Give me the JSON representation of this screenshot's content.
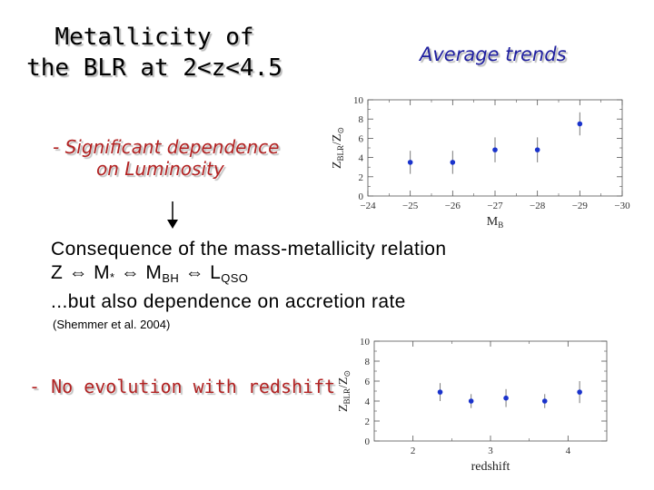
{
  "slide": {
    "title_line1": "Metallicity of",
    "title_line2": "the BLR at 2<z<4.5",
    "subtitle": "Average trends",
    "bullet1_line1": "- Significant dependence",
    "bullet1_line2": "on Luminosity",
    "bullet2": "- No evolution with redshift",
    "consequence_line1": "Consequence of the mass-metallicity relation",
    "relation": {
      "z": "Z",
      "arrow": "⇔",
      "m": "M",
      "star": "*",
      "mbh_base": "M",
      "mbh_sub": "BH",
      "lqso_base": "L",
      "lqso_sub": "QSO"
    },
    "consequence_line3": "...but also dependence on accretion rate",
    "reference": "(Shemmer et al. 2004)"
  },
  "chart_data": [
    {
      "type": "scatter",
      "name": "metallicity-vs-luminosity",
      "xlabel": "M",
      "xlabel_sub": "B",
      "ylabel_base": "Z",
      "ylabel_sub": "BLR",
      "ylabel_sep": "/",
      "ylabel_base2": "Z",
      "ylabel_sub2": "⊙",
      "xlim": [
        -24,
        -30
      ],
      "ylim": [
        0,
        10
      ],
      "xticks": [
        -24,
        -25,
        -26,
        -27,
        -28,
        -29,
        -30
      ],
      "xtick_labels": [
        "−24",
        "−25",
        "−26",
        "−27",
        "−28",
        "−29",
        "−30"
      ],
      "yticks": [
        0,
        2,
        4,
        6,
        8,
        10
      ],
      "ytick_labels": [
        "0",
        "2",
        "4",
        "6",
        "8",
        "10"
      ],
      "points": [
        {
          "x": -25,
          "y": 3.5,
          "err": 1.2
        },
        {
          "x": -26,
          "y": 3.5,
          "err": 1.2
        },
        {
          "x": -27,
          "y": 4.8,
          "err": 1.3
        },
        {
          "x": -28,
          "y": 4.8,
          "err": 1.3
        },
        {
          "x": -29,
          "y": 7.5,
          "err": 1.2
        }
      ],
      "color": "#1a33cc"
    },
    {
      "type": "scatter",
      "name": "metallicity-vs-redshift",
      "xlabel": "redshift",
      "ylabel_base": "Z",
      "ylabel_sub": "BLR",
      "ylabel_sep": "/",
      "ylabel_base2": "Z",
      "ylabel_sub2": "⊙",
      "xlim": [
        1.5,
        4.5
      ],
      "ylim": [
        0,
        10
      ],
      "xticks": [
        2,
        3,
        4
      ],
      "xtick_labels": [
        "2",
        "3",
        "4"
      ],
      "yticks": [
        0,
        2,
        4,
        6,
        8,
        10
      ],
      "ytick_labels": [
        "0",
        "2",
        "4",
        "6",
        "8",
        "10"
      ],
      "points": [
        {
          "x": 2.35,
          "y": 4.9,
          "err": 0.9
        },
        {
          "x": 2.75,
          "y": 4.0,
          "err": 0.7
        },
        {
          "x": 3.2,
          "y": 4.3,
          "err": 0.9
        },
        {
          "x": 3.7,
          "y": 4.0,
          "err": 0.7
        },
        {
          "x": 4.15,
          "y": 4.9,
          "err": 1.1
        }
      ],
      "color": "#1a33cc"
    }
  ]
}
